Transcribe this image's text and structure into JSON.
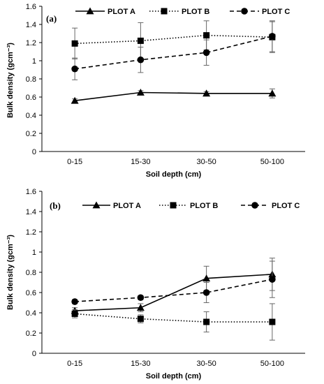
{
  "chart_data": [
    {
      "type": "line",
      "panel_label": "(a)",
      "categories": [
        "0-15",
        "15-30",
        "30-50",
        "50-100"
      ],
      "xlabel": "Soil depth (cm)",
      "ylabel": "Bulk density (gcm⁻³)",
      "ylim": [
        0,
        1.6
      ],
      "yticks": [
        0,
        0.2,
        0.4,
        0.6,
        0.8,
        1,
        1.2,
        1.4,
        1.6
      ],
      "yticklabels": [
        "0",
        "0.2",
        "0.4",
        "0.6",
        "0.8",
        "1",
        "1.2",
        "1.4",
        "1.6"
      ],
      "grid": false,
      "legend_position": "top",
      "series": [
        {
          "name": "PLOT A",
          "marker": "triangle",
          "line": "solid",
          "values": [
            0.56,
            0.65,
            0.64,
            0.64
          ],
          "errors": [
            0.02,
            0.02,
            0.02,
            0.05
          ]
        },
        {
          "name": "PLOT B",
          "marker": "square",
          "line": "dotted",
          "values": [
            1.19,
            1.22,
            1.28,
            1.26
          ],
          "errors": [
            0.17,
            0.2,
            0.16,
            0.17
          ]
        },
        {
          "name": "PLOT C",
          "marker": "circle",
          "line": "dashed",
          "values": [
            0.91,
            1.01,
            1.09,
            1.27
          ],
          "errors": [
            0.12,
            0.14,
            0.14,
            0.17
          ]
        }
      ]
    },
    {
      "type": "line",
      "panel_label": "(b)",
      "categories": [
        "0-15",
        "15-30",
        "30-50",
        "50-100"
      ],
      "xlabel": "Soil depth (cm)",
      "ylabel": "Bulk density (gcm⁻³)",
      "ylim": [
        0,
        1.6
      ],
      "yticks": [
        0,
        0.2,
        0.4,
        0.6,
        0.8,
        1,
        1.2,
        1.4,
        1.6
      ],
      "yticklabels": [
        "0",
        "0.2",
        "0.4",
        "0.6",
        "0.8",
        "1",
        "1.2",
        "1.4",
        "1.6"
      ],
      "grid": false,
      "legend_position": "top",
      "series": [
        {
          "name": "PLOT A",
          "marker": "triangle",
          "line": "solid",
          "values": [
            0.42,
            0.45,
            0.74,
            0.78
          ],
          "errors": [
            0.03,
            0.04,
            0.12,
            0.16
          ]
        },
        {
          "name": "PLOT B",
          "marker": "square",
          "line": "dotted",
          "values": [
            0.39,
            0.34,
            0.31,
            0.31
          ],
          "errors": [
            0.04,
            0.04,
            0.1,
            0.18
          ]
        },
        {
          "name": "PLOT C",
          "marker": "circle",
          "line": "dashed",
          "values": [
            0.51,
            0.55,
            0.6,
            0.73
          ],
          "errors": [
            0.02,
            0.02,
            0.1,
            0.18
          ]
        }
      ]
    }
  ]
}
